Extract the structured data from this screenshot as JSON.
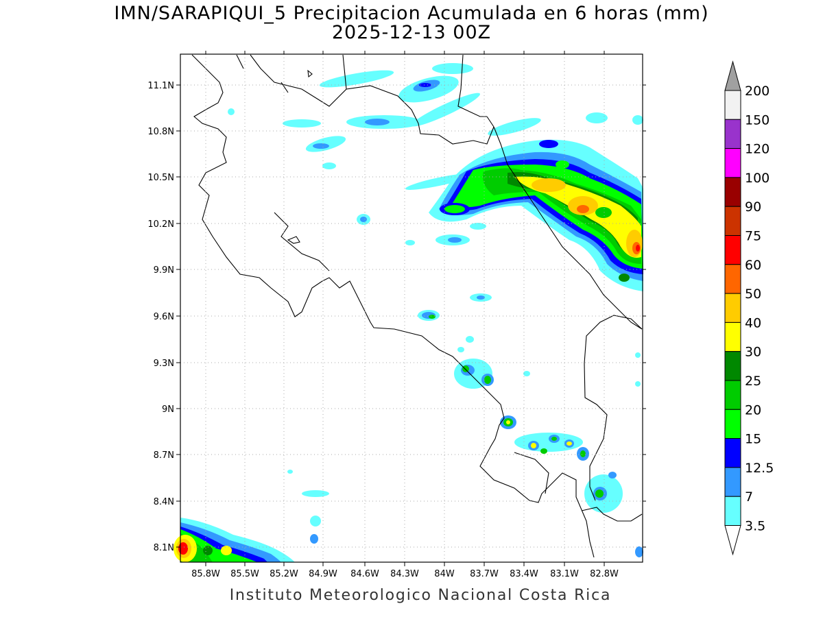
{
  "title_line1": "IMN/SARAPIQUI_5 Precipitacion Acumulada en 6 horas (mm)",
  "title_line2": "2025-12-13 00Z",
  "footer": "Instituto Meteorologico Nacional Costa Rica",
  "map": {
    "lon_range": [
      -86.0,
      -83.0
    ],
    "lat_range": [
      8.0,
      11.3
    ],
    "lon_ticks": [
      "85.8W",
      "85.5W",
      "85.2W",
      "84.9W",
      "84.6W",
      "84.3W",
      "84W",
      "83.7W",
      "83.4W",
      "83.1W",
      "82.8W"
    ],
    "lat_ticks": [
      "11.1N",
      "10.8N",
      "10.5N",
      "10.2N",
      "9.9N",
      "9.6N",
      "9.3N",
      "9N",
      "8.7N",
      "8.4N",
      "8.1N"
    ],
    "grid": true
  },
  "colorbar": {
    "labels": [
      "3.5",
      "7",
      "12.5",
      "15",
      "20",
      "25",
      "30",
      "40",
      "50",
      "60",
      "75",
      "90",
      "100",
      "120",
      "150",
      "200"
    ],
    "colors": [
      "#ffffff",
      "#66ffff",
      "#3399ff",
      "#0000ff",
      "#00ff00",
      "#00cc00",
      "#008800",
      "#ffff00",
      "#ffcc00",
      "#ff6600",
      "#ff0000",
      "#cc3300",
      "#990000",
      "#ff00ff",
      "#9933cc",
      "#f2f2f2",
      "#a0a0a0"
    ]
  },
  "colors": {
    "c3_5": "#66ffff",
    "c7": "#3399ff",
    "c12_5": "#0000ff",
    "c15": "#00ff00",
    "c20": "#00cc00",
    "c25": "#008800",
    "c30": "#ffff00",
    "c40": "#ffcc00",
    "c50": "#ff6600",
    "c60": "#ff0000"
  }
}
